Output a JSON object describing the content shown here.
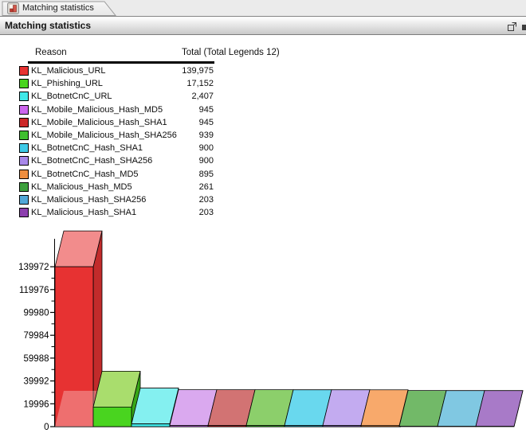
{
  "window": {
    "tab_label": "Matching statistics",
    "panel_title": "Matching statistics"
  },
  "legend": {
    "col_reason": "Reason",
    "col_total": "Total (Total Legends 12)"
  },
  "chart_data": {
    "type": "bar",
    "style": "3d",
    "title": "",
    "xlabel": "",
    "ylabel": "",
    "ylim": [
      0,
      143500
    ],
    "y_ticks": [
      0,
      19996,
      39992,
      59988,
      79984,
      99980,
      119976,
      139972
    ],
    "grid": false,
    "legend_position": "table-above-chart",
    "series": [
      {
        "label": "KL_Malicious_URL",
        "value": 139975,
        "display": "139,975",
        "color": "#e73232",
        "top_color": "#f28c8c",
        "side_color": "#c22b2b"
      },
      {
        "label": "KL_Phishing_URL",
        "value": 17152,
        "display": "17,152",
        "color": "#49d41f",
        "top_color": "#a9dd6d",
        "side_color": "#37a617"
      },
      {
        "label": "KL_BotnetCnC_URL",
        "value": 2407,
        "display": "2,407",
        "color": "#3fe8e8",
        "top_color": "#84f0f0",
        "side_color": "#2fb5b5"
      },
      {
        "label": "KL_Mobile_Malicious_Hash_MD5",
        "value": 945,
        "display": "945",
        "color": "#cc66ee",
        "top_color": "#daa9ef",
        "side_color": "#a04cc0"
      },
      {
        "label": "KL_Mobile_Malicious_Hash_SHA1",
        "value": 945,
        "display": "945",
        "color": "#cc2727",
        "top_color": "#d27373",
        "side_color": "#a01f1f"
      },
      {
        "label": "KL_Mobile_Malicious_Hash_SHA256",
        "value": 939,
        "display": "939",
        "color": "#3fbf2f",
        "top_color": "#8ccf6b",
        "side_color": "#319525"
      },
      {
        "label": "KL_BotnetCnC_Hash_SHA1",
        "value": 900,
        "display": "900",
        "color": "#3dcae8",
        "top_color": "#69d8ee",
        "side_color": "#2f9fb8"
      },
      {
        "label": "KL_BotnetCnC_Hash_SHA256",
        "value": 900,
        "display": "900",
        "color": "#a888ea",
        "top_color": "#c3abf0",
        "side_color": "#8468bd"
      },
      {
        "label": "KL_BotnetCnC_Hash_MD5",
        "value": 895,
        "display": "895",
        "color": "#ef8e3f",
        "top_color": "#f8a96b",
        "side_color": "#bf7130"
      },
      {
        "label": "KL_Malicious_Hash_MD5",
        "value": 261,
        "display": "261",
        "color": "#3da03d",
        "top_color": "#72b968",
        "side_color": "#2f7d2f"
      },
      {
        "label": "KL_Malicious_Hash_SHA256",
        "value": 203,
        "display": "203",
        "color": "#52a8d8",
        "top_color": "#80c8e2",
        "side_color": "#3f85ab"
      },
      {
        "label": "KL_Malicious_Hash_SHA1",
        "value": 203,
        "display": "203",
        "color": "#8c3fae",
        "top_color": "#a87ac8",
        "side_color": "#6e3089"
      }
    ]
  }
}
